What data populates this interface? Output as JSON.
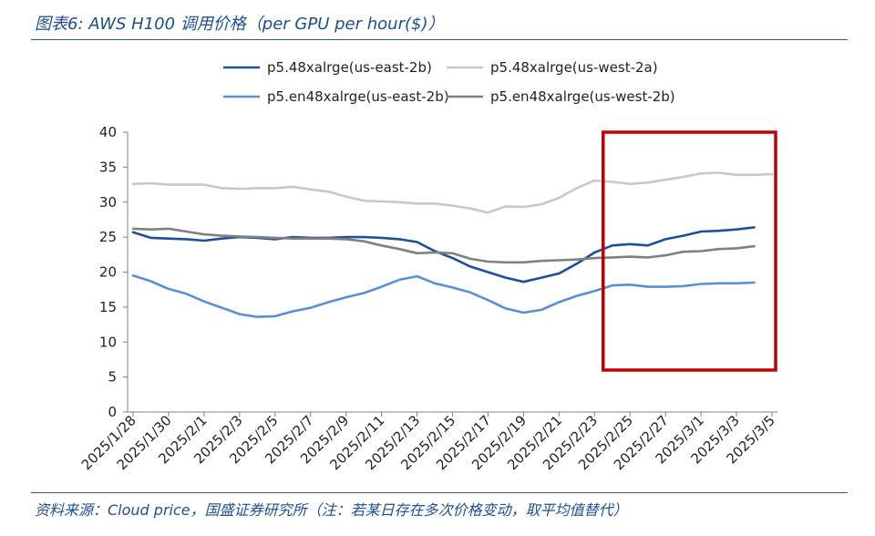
{
  "header": {
    "title": "图表6:  AWS H100 调用价格（per GPU per hour($)）"
  },
  "footer": {
    "source": "资料来源：Cloud price，国盛证券研究所（注：若某日存在多次价格变动，取平均值替代）"
  },
  "chart_data": {
    "type": "line",
    "title": "AWS H100 调用价格（per GPU per hour($)）",
    "xlabel": "",
    "ylabel": "",
    "ylim": [
      0,
      40
    ],
    "yticks": [
      0,
      5,
      10,
      15,
      20,
      25,
      30,
      35,
      40
    ],
    "x": [
      "2025/1/28",
      "2025/1/29",
      "2025/1/30",
      "2025/1/31",
      "2025/2/1",
      "2025/2/2",
      "2025/2/3",
      "2025/2/4",
      "2025/2/5",
      "2025/2/6",
      "2025/2/7",
      "2025/2/8",
      "2025/2/9",
      "2025/2/10",
      "2025/2/11",
      "2025/2/12",
      "2025/2/13",
      "2025/2/14",
      "2025/2/15",
      "2025/2/16",
      "2025/2/17",
      "2025/2/18",
      "2025/2/19",
      "2025/2/20",
      "2025/2/21",
      "2025/2/22",
      "2025/2/23",
      "2025/2/24",
      "2025/2/25",
      "2025/2/26",
      "2025/2/27",
      "2025/2/28",
      "2025/3/1",
      "2025/3/2",
      "2025/3/3",
      "2025/3/4",
      "2025/3/5"
    ],
    "xtick_labels": [
      "2025/1/28",
      "2025/1/30",
      "2025/2/1",
      "2025/2/3",
      "2025/2/5",
      "2025/2/7",
      "2025/2/9",
      "2025/2/11",
      "2025/2/13",
      "2025/2/15",
      "2025/2/17",
      "2025/2/19",
      "2025/2/21",
      "2025/2/23",
      "2025/2/25",
      "2025/2/27",
      "2025/3/1",
      "2025/3/3",
      "2025/3/5"
    ],
    "series": [
      {
        "name": "p5.48xalrge(us-east-2b)",
        "color": "#1f4e9a",
        "values": [
          25.7,
          24.9,
          24.8,
          24.7,
          24.5,
          24.8,
          25.0,
          24.9,
          24.7,
          25.0,
          24.9,
          24.9,
          25.0,
          25.0,
          24.9,
          24.7,
          24.3,
          23.0,
          22.0,
          20.8,
          20.0,
          19.2,
          18.6,
          19.2,
          19.8,
          21.2,
          22.8,
          23.8,
          24.0,
          23.8,
          24.7,
          25.2,
          25.8,
          25.9,
          26.1,
          26.4,
          null
        ]
      },
      {
        "name": "p5.48xalrge(us-west-2a)",
        "color": "#c8c8c8",
        "values": [
          32.6,
          32.7,
          32.5,
          32.5,
          32.5,
          32.0,
          31.9,
          32.0,
          32.0,
          32.2,
          31.8,
          31.5,
          30.8,
          30.2,
          30.1,
          30.0,
          29.8,
          29.8,
          29.5,
          29.1,
          28.5,
          29.4,
          29.3,
          29.7,
          30.6,
          32.0,
          33.1,
          32.9,
          32.6,
          32.8,
          33.2,
          33.6,
          34.1,
          34.2,
          33.9,
          33.9,
          34.0
        ]
      },
      {
        "name": "p5.en48xalrge(us-east-2b)",
        "color": "#5b8fd0",
        "values": [
          19.5,
          18.7,
          17.6,
          16.9,
          15.8,
          14.9,
          14.0,
          13.6,
          13.7,
          14.4,
          14.9,
          15.7,
          16.4,
          17.0,
          17.9,
          18.9,
          19.4,
          18.4,
          17.8,
          17.1,
          16.0,
          14.8,
          14.2,
          14.6,
          15.7,
          16.6,
          17.3,
          18.1,
          18.2,
          17.9,
          17.9,
          18.0,
          18.3,
          18.4,
          18.4,
          18.5,
          null
        ]
      },
      {
        "name": "p5.en48xalrge(us-west-2b)",
        "color": "#808080",
        "values": [
          26.2,
          26.1,
          26.2,
          25.8,
          25.4,
          25.2,
          25.1,
          25.0,
          24.9,
          24.8,
          24.8,
          24.8,
          24.7,
          24.4,
          23.8,
          23.3,
          22.7,
          22.8,
          22.7,
          21.9,
          21.5,
          21.4,
          21.4,
          21.6,
          21.7,
          21.8,
          22.0,
          22.1,
          22.2,
          22.1,
          22.4,
          22.9,
          23.0,
          23.3,
          23.4,
          23.7,
          null
        ]
      }
    ],
    "highlight": {
      "from": "2025/2/24",
      "to": "2025/3/5",
      "ymin": 6,
      "ymax": 40,
      "color": "#c00000"
    },
    "legend": "top-center, 2 columns"
  }
}
